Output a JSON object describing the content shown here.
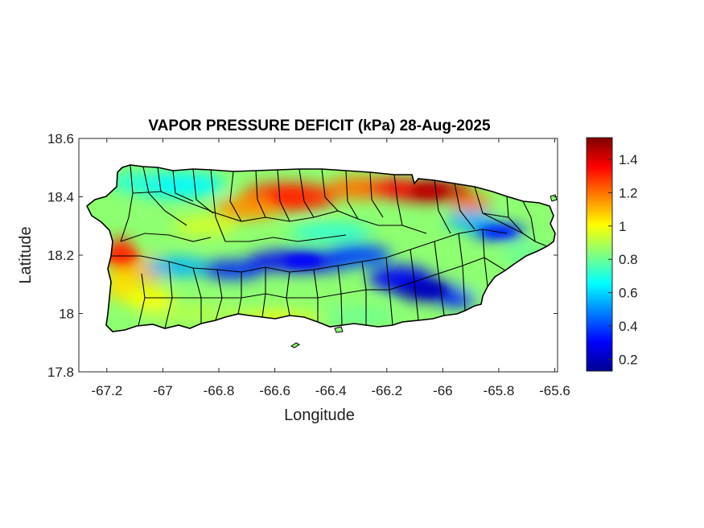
{
  "title": "VAPOR PRESSURE DEFICIT (kPa) 28-Aug-2025",
  "xlabel": "Longitude",
  "ylabel": "Latitude",
  "x_ticks": [
    "-67.2",
    "-67",
    "-66.8",
    "-66.6",
    "-66.4",
    "-66.2",
    "-66",
    "-65.8",
    "-65.6"
  ],
  "y_ticks": [
    "18.6",
    "18.4",
    "18.2",
    "18",
    "17.8"
  ],
  "colorbar_ticks": [
    "1.4",
    "1.2",
    "1",
    "0.8",
    "0.6",
    "0.4",
    "0.2"
  ],
  "chart_data": {
    "type": "heatmap",
    "title": "VAPOR PRESSURE DEFICIT (kPa) 28-Aug-2025",
    "xlabel": "Longitude",
    "ylabel": "Latitude",
    "xlim": [
      -67.3,
      -65.59
    ],
    "ylim": [
      17.8,
      18.6
    ],
    "x_tick_values": [
      -67.2,
      -67,
      -66.8,
      -66.6,
      -66.4,
      -66.2,
      -66,
      -65.8,
      -65.6
    ],
    "y_tick_values": [
      18.6,
      18.4,
      18.2,
      18,
      17.8
    ],
    "colorbar": {
      "colormap": "jet",
      "min": 0.13,
      "max": 1.53,
      "tick_values": [
        1.4,
        1.2,
        1,
        0.8,
        0.6,
        0.4,
        0.2
      ]
    },
    "regions": [
      {
        "name_hint": "north-central high",
        "lon": -66.55,
        "lat": 18.4,
        "vpd": 1.3
      },
      {
        "name_hint": "north-east high",
        "lon": -66.05,
        "lat": 18.42,
        "vpd": 1.45
      },
      {
        "name_hint": "west coast high",
        "lon": -67.15,
        "lat": 18.2,
        "vpd": 1.3
      },
      {
        "name_hint": "central mountains low",
        "lon": -66.5,
        "lat": 18.18,
        "vpd": 0.3
      },
      {
        "name_hint": "south-east interior low",
        "lon": -66.05,
        "lat": 18.08,
        "vpd": 0.2
      },
      {
        "name_hint": "eastern low",
        "lon": -65.8,
        "lat": 18.28,
        "vpd": 0.35
      },
      {
        "name_hint": "south coast",
        "lon": -66.6,
        "lat": 17.98,
        "vpd": 0.95
      }
    ]
  },
  "colors": {
    "frame": "#262626",
    "coastline": "#000000",
    "background": "#ffffff"
  }
}
